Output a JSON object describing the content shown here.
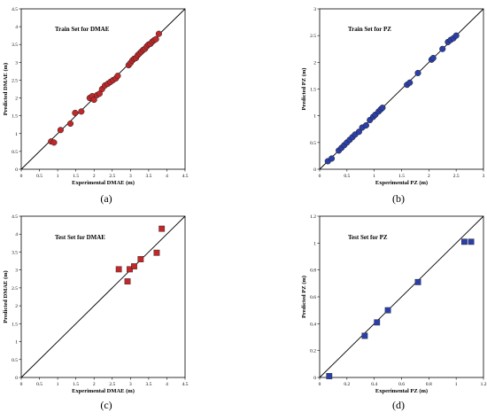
{
  "chart_data": [
    {
      "type": "scatter",
      "panel_label": "(a)",
      "title": "Train Set for DMAE",
      "xlabel": "Experimental DMAE (m)",
      "ylabel": "Predicted DMAE (m)",
      "xlim": [
        0,
        4.5
      ],
      "ylim": [
        0,
        4.5
      ],
      "xticks": [
        "0",
        "0.5",
        "1",
        "1.5",
        "2",
        "2.5",
        "3",
        "3.5",
        "4",
        "4.5"
      ],
      "yticks": [
        "0",
        "0.5",
        "1",
        "1.5",
        "2",
        "2.5",
        "3",
        "3.5",
        "4",
        "4.5"
      ],
      "marker": "circle",
      "color": "#c0282a",
      "grid": false,
      "reference_line": "y = x",
      "x": [
        0.82,
        0.9,
        1.08,
        1.35,
        1.48,
        1.65,
        1.88,
        1.95,
        2.0,
        2.08,
        2.15,
        2.22,
        2.3,
        2.38,
        2.45,
        2.52,
        2.6,
        2.65,
        2.95,
        3.0,
        3.05,
        3.1,
        3.15,
        3.2,
        3.25,
        3.3,
        3.35,
        3.4,
        3.45,
        3.5,
        3.55,
        3.6,
        3.65,
        3.7,
        3.78
      ],
      "y": [
        0.78,
        0.75,
        1.1,
        1.28,
        1.58,
        1.62,
        2.0,
        2.05,
        1.95,
        2.08,
        2.12,
        2.25,
        2.35,
        2.4,
        2.45,
        2.5,
        2.55,
        2.62,
        2.92,
        2.98,
        3.05,
        3.1,
        3.12,
        3.2,
        3.25,
        3.3,
        3.35,
        3.38,
        3.45,
        3.5,
        3.52,
        3.58,
        3.62,
        3.65,
        3.8
      ]
    },
    {
      "type": "scatter",
      "panel_label": "(b)",
      "title": "Train Set for PZ",
      "xlabel": "Experimental PZ (m)",
      "ylabel": "Predicted PZ (m)",
      "xlim": [
        0,
        3
      ],
      "ylim": [
        0,
        3
      ],
      "xticks": [
        "0",
        "0.5",
        "1",
        "1.5",
        "2",
        "2.5",
        "3"
      ],
      "yticks": [
        "0",
        "0.5",
        "1",
        "1.5",
        "2",
        "2.5",
        "3"
      ],
      "marker": "circle",
      "color": "#2b3fa8",
      "grid": false,
      "reference_line": "y = x",
      "x": [
        0.15,
        0.22,
        0.35,
        0.4,
        0.45,
        0.5,
        0.55,
        0.6,
        0.65,
        0.72,
        0.78,
        0.85,
        0.92,
        0.98,
        1.02,
        1.08,
        1.12,
        1.15,
        1.6,
        1.65,
        1.8,
        2.05,
        2.08,
        2.25,
        2.35,
        2.4,
        2.45,
        2.5
      ],
      "y": [
        0.15,
        0.2,
        0.35,
        0.4,
        0.45,
        0.5,
        0.55,
        0.6,
        0.65,
        0.7,
        0.78,
        0.82,
        0.92,
        0.98,
        1.02,
        1.08,
        1.12,
        1.15,
        1.58,
        1.62,
        1.8,
        2.05,
        2.08,
        2.25,
        2.38,
        2.42,
        2.45,
        2.5
      ]
    },
    {
      "type": "scatter",
      "panel_label": "(c)",
      "title": "Test Set for DMAE",
      "xlabel": "Experimental DMAE (m)",
      "ylabel": "Predicted DMAE (m)",
      "xlim": [
        0,
        4.5
      ],
      "ylim": [
        0,
        4.5
      ],
      "xticks": [
        "0",
        "0.5",
        "1",
        "1.5",
        "2",
        "2.5",
        "3",
        "3.5",
        "4",
        "4.5"
      ],
      "yticks": [
        "0",
        "0.5",
        "1",
        "1.5",
        "2",
        "2.5",
        "3",
        "3.5",
        "4",
        "4.5"
      ],
      "marker": "square",
      "color": "#c0282a",
      "grid": false,
      "reference_line": "y = x",
      "x": [
        2.68,
        2.92,
        2.98,
        3.1,
        3.28,
        3.72,
        3.86
      ],
      "y": [
        3.02,
        2.68,
        3.02,
        3.1,
        3.3,
        3.48,
        4.15
      ]
    },
    {
      "type": "scatter",
      "panel_label": "(d)",
      "title": "Test Set for PZ",
      "xlabel": "Experimental PZ (m)",
      "ylabel": "Predicted PZ (m)",
      "xlim": [
        0,
        1.2
      ],
      "ylim": [
        0,
        1.2
      ],
      "xticks": [
        "0",
        "0.2",
        "0.4",
        "0.6",
        "0.8",
        "1",
        "1.2"
      ],
      "yticks": [
        "0",
        "0.2",
        "0.4",
        "0.6",
        "0.8",
        "1",
        "1.2"
      ],
      "marker": "square",
      "color": "#2b3fa8",
      "grid": false,
      "reference_line": "y = x",
      "x": [
        0.07,
        0.33,
        0.42,
        0.5,
        0.72,
        1.06,
        1.11
      ],
      "y": [
        0.01,
        0.31,
        0.41,
        0.5,
        0.71,
        1.01,
        1.01
      ]
    }
  ]
}
